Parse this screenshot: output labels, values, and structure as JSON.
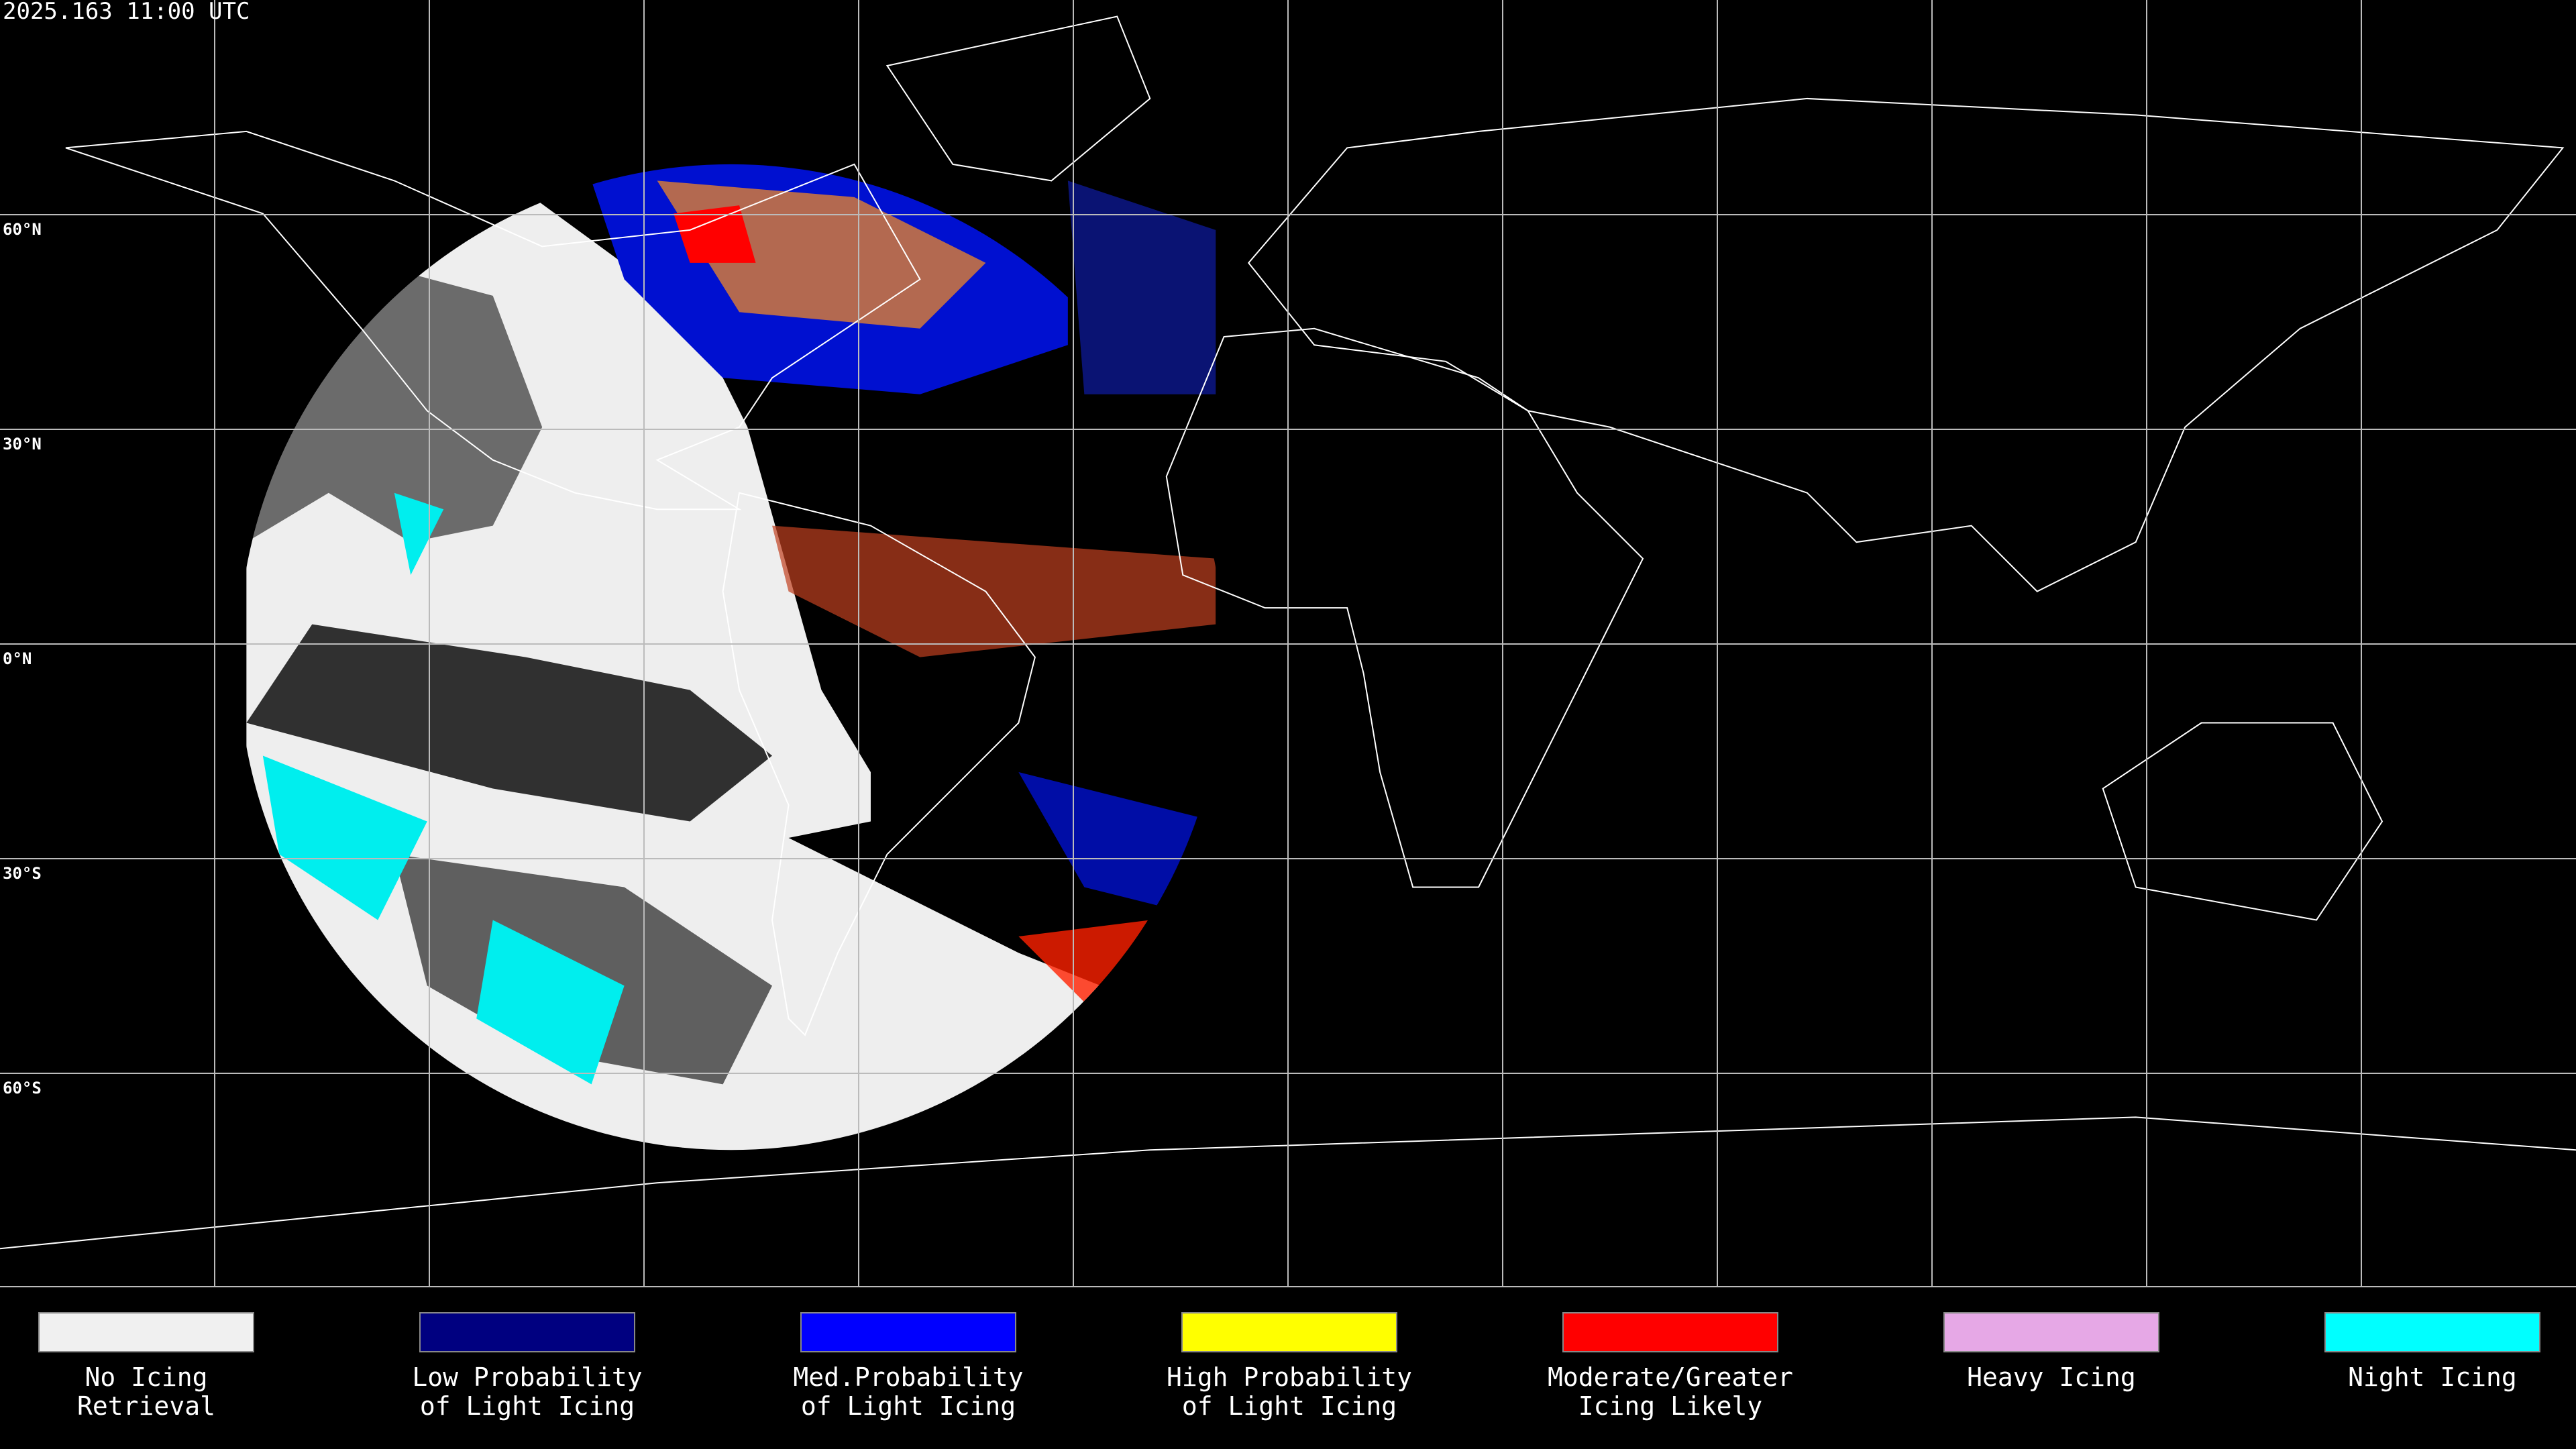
{
  "header": {
    "timestamp": "2025.163 11:00 UTC"
  },
  "map": {
    "latitude_labels": [
      "60°N",
      "30°N",
      "0°N",
      "30°S",
      "60°S"
    ]
  },
  "legend": {
    "items": [
      {
        "lines": [
          "No Icing",
          "Retrieval"
        ],
        "color": "#f0f0f0"
      },
      {
        "lines": [
          "Low Probability",
          "of Light Icing"
        ],
        "color": "#000080"
      },
      {
        "lines": [
          "Med.Probability",
          "of Light Icing"
        ],
        "color": "#0000ff"
      },
      {
        "lines": [
          "High Probability",
          "of Light Icing"
        ],
        "color": "#ffff00"
      },
      {
        "lines": [
          "Moderate/Greater",
          "Icing Likely"
        ],
        "color": "#ff0000"
      },
      {
        "lines": [
          "Heavy Icing"
        ],
        "color": "#e6a8e6"
      },
      {
        "lines": [
          "Night Icing"
        ],
        "color": "#00ffff"
      }
    ]
  }
}
